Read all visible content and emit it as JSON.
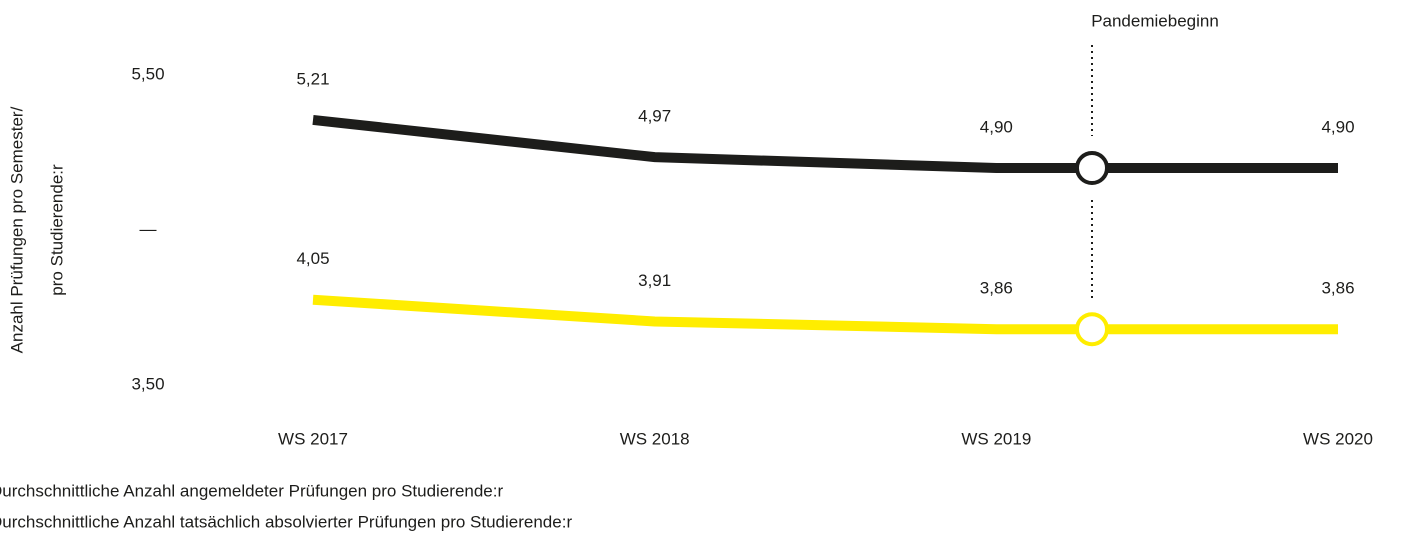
{
  "chart_data": {
    "type": "line",
    "ylabel": [
      "Anzahl Prüfungen pro Semester/",
      "pro Studierende:r"
    ],
    "categories": [
      "WS 2017",
      "WS 2018",
      "WS 2019",
      "WS 2020"
    ],
    "series": [
      {
        "name": "Durchschnittliche Anzahl angemeldeter Prüfungen pro Studierende:r",
        "color": "#1d1d1b",
        "values": [
          5.21,
          4.97,
          4.9,
          4.9
        ],
        "value_labels": [
          "5,21",
          "4,97",
          "4,90",
          "4,90"
        ]
      },
      {
        "name": "Durchschnittliche Anzahl tatsächlich absolvierter Prüfungen pro Studierende:r",
        "color": "#ffed00",
        "values": [
          4.05,
          3.91,
          3.86,
          3.86
        ],
        "value_labels": [
          "4,05",
          "3,91",
          "3,86",
          "3,86"
        ]
      }
    ],
    "ylim": [
      3.5,
      5.5
    ],
    "yticks": [
      {
        "value": 5.5,
        "label": "5,50"
      },
      {
        "value": 4.5,
        "label": "—"
      },
      {
        "value": 3.5,
        "label": "3,50"
      }
    ],
    "annotation": {
      "label": "Pandemiebeginn"
    }
  }
}
